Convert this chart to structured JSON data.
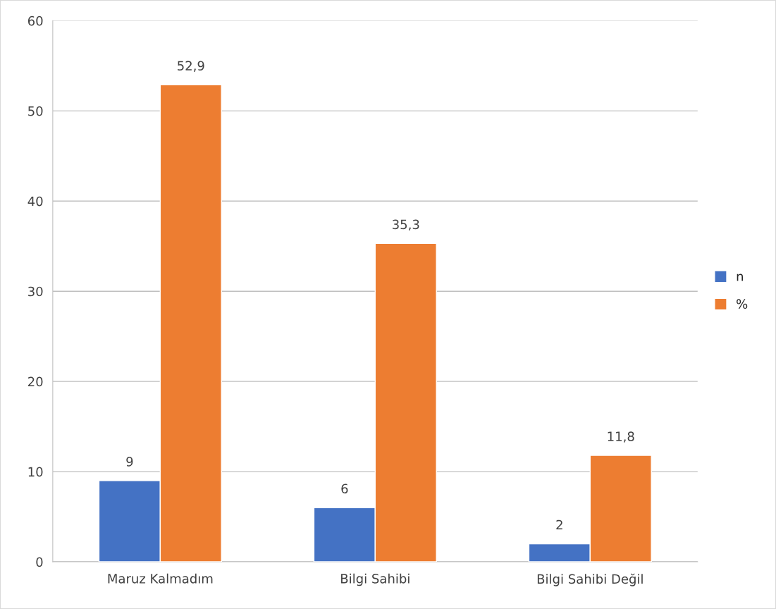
{
  "chart_data": {
    "type": "bar",
    "categories": [
      "Maruz Kalmadım",
      "Bilgi Sahibi",
      "Bilgi Sahibi Değil"
    ],
    "series": [
      {
        "name": "n",
        "color": "#4472c4",
        "values": [
          9,
          6,
          2
        ],
        "value_labels": [
          "9",
          "6",
          "2"
        ]
      },
      {
        "name": "%",
        "color": "#ed7d31",
        "values": [
          52.9,
          35.3,
          11.8
        ],
        "value_labels": [
          "52,9",
          "35,3",
          "11,8"
        ]
      }
    ],
    "ylim": [
      0,
      60
    ],
    "yticks": [
      0,
      10,
      20,
      30,
      40,
      50,
      60
    ],
    "grid": "y",
    "legend": "right"
  }
}
